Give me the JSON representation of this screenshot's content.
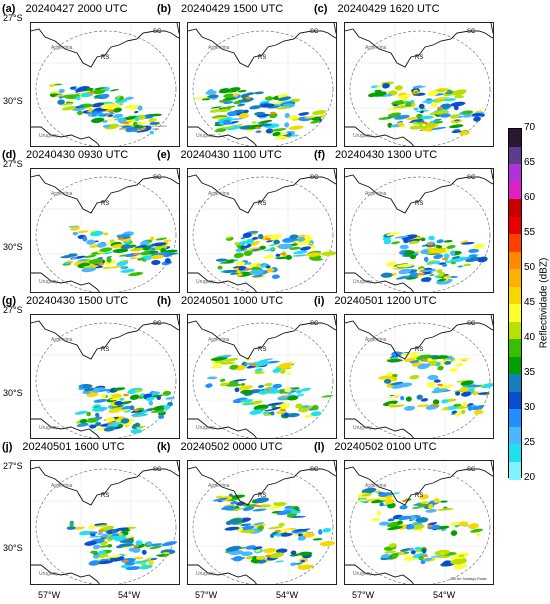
{
  "panels": [
    {
      "letter": "(a)",
      "time": "20240427 2000 UTC"
    },
    {
      "letter": "(b)",
      "time": "20240429 1500 UTC"
    },
    {
      "letter": "(c)",
      "time": "20240429 1620 UTC"
    },
    {
      "letter": "(d)",
      "time": "20240430 0930 UTC"
    },
    {
      "letter": "(e)",
      "time": "20240430 1100 UTC"
    },
    {
      "letter": "(f)",
      "time": "20240430 1300 UTC"
    },
    {
      "letter": "(g)",
      "time": "20240430 1500 UTC"
    },
    {
      "letter": "(h)",
      "time": "20240501 1000 UTC"
    },
    {
      "letter": "(i)",
      "time": "20240501 1200 UTC"
    },
    {
      "letter": "(j)",
      "time": "20240501 1600 UTC"
    },
    {
      "letter": "(k)",
      "time": "20240502 0000 UTC"
    },
    {
      "letter": "(l)",
      "time": "20240502 0100 UTC"
    }
  ],
  "map_labels": {
    "argentina": "Argentina",
    "uruguay": "Uruguay",
    "rs": "RS",
    "sc": "SC"
  },
  "lat_labels": [
    "27°S",
    "30°S"
  ],
  "lon_labels": [
    "57°W",
    "54°W"
  ],
  "panel_a_legend": [
    "Cruzeiro Cida Sanz Torres Do Norte",
    "(8650000) 7 M80 (6001) 2023"
  ],
  "panel_l_credit": "250 km Santiago Radar",
  "colorbar": {
    "title": "Reflectividade (dBZ)",
    "ticks": [
      70,
      65,
      60,
      55,
      50,
      45,
      40,
      35,
      30,
      25,
      20
    ],
    "colors": [
      "#2a1830",
      "#5a3e8a",
      "#b032d8",
      "#e020c0",
      "#c80000",
      "#e80000",
      "#ff4000",
      "#ff8a00",
      "#ffb000",
      "#f6d800",
      "#ffff30",
      "#b8e000",
      "#38c000",
      "#00a000",
      "#167fbe",
      "#0a4ed0",
      "#2090ff",
      "#4ab8ff",
      "#20e0f0",
      "#7ff4ff"
    ]
  }
}
